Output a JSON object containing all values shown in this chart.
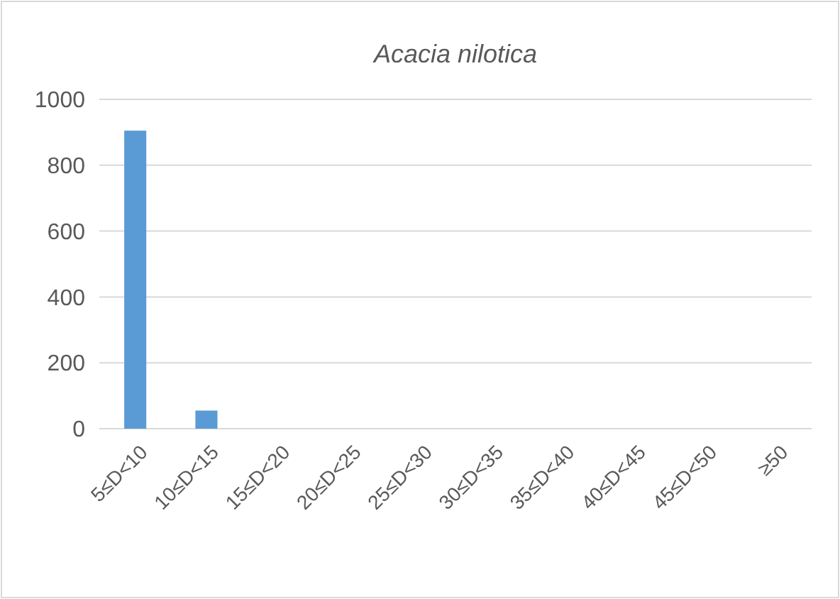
{
  "chart_data": {
    "type": "bar",
    "title": "Acacia nilotica",
    "categories": [
      "5≤D<10",
      "10≤D<15",
      "15≤D<20",
      "20≤D<25",
      "25≤D<30",
      "30≤D<35",
      "35≤D<40",
      "40≤D<45",
      "45≤D<50",
      "≥50"
    ],
    "values": [
      905,
      55,
      0,
      0,
      0,
      0,
      0,
      0,
      0,
      0
    ],
    "color": "#5b9bd5",
    "ylim": [
      0,
      1000
    ],
    "yticks": [
      0,
      200,
      400,
      600,
      800,
      1000
    ],
    "grid": "y"
  }
}
